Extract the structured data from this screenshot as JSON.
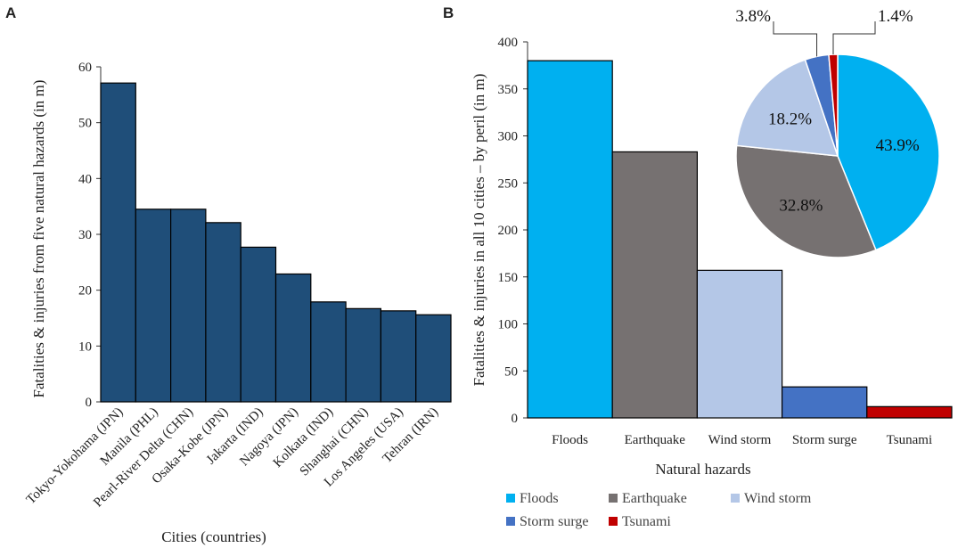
{
  "panels": {
    "a_letter": "A",
    "b_letter": "B"
  },
  "chart_data": [
    {
      "id": "panelA",
      "type": "bar",
      "title": "",
      "categories": [
        "Tokyo-Yokohama (JPN)",
        "Manila (PHL)",
        "Pearl-River Delta (CHN)",
        "Osaka-Kobe (JPN)",
        "Jakarta (IND)",
        "Nagoya (JPN)",
        "Kolkata (IND)",
        "Shanghai (CHN)",
        "Los Angeles (USA)",
        "Tehran (IRN)"
      ],
      "values": [
        57.1,
        34.5,
        34.5,
        32.1,
        27.7,
        22.9,
        17.9,
        16.7,
        16.3,
        15.6
      ],
      "xlabel": "Cities (countries)",
      "ylabel": "Fatalities & injuries from five natural hazards  (in m)",
      "ylim": [
        0,
        60
      ],
      "yticks": [
        0,
        10,
        20,
        30,
        40,
        50,
        60
      ],
      "bar_color": "#1f4e79",
      "grid": false
    },
    {
      "id": "panelB",
      "type": "bar",
      "title": "",
      "categories": [
        "Floods",
        "Earthquake",
        "Wind storm",
        "Storm surge",
        "Tsunami"
      ],
      "values": [
        380,
        283,
        157,
        33,
        12
      ],
      "colors": [
        "#00b0f0",
        "#767171",
        "#b4c7e7",
        "#4472c4",
        "#c00000"
      ],
      "xlabel": "Natural  hazards",
      "ylabel": "Fatalities & injuries in all 10 cities – by peril (in m)",
      "ylim": [
        0,
        400
      ],
      "yticks": [
        0,
        50,
        100,
        150,
        200,
        250,
        300,
        350,
        400
      ],
      "grid": false
    },
    {
      "id": "panelB-pie",
      "type": "pie",
      "labels": [
        "Floods",
        "Earthquake",
        "Wind storm",
        "Storm surge",
        "Tsunami"
      ],
      "values": [
        43.9,
        32.8,
        18.2,
        3.8,
        1.4
      ],
      "value_labels": [
        "43.9%",
        "32.8%",
        "18.2%",
        "3.8%",
        "1.4%"
      ],
      "colors": [
        "#00b0f0",
        "#767171",
        "#b4c7e7",
        "#4472c4",
        "#c00000"
      ]
    }
  ],
  "legend": {
    "placement": "bottom",
    "items": [
      {
        "label": "Floods",
        "color": "#00b0f0"
      },
      {
        "label": "Earthquake",
        "color": "#767171"
      },
      {
        "label": "Wind storm",
        "color": "#b4c7e7"
      },
      {
        "label": "Storm surge",
        "color": "#4472c4"
      },
      {
        "label": "Tsunami",
        "color": "#c00000"
      }
    ]
  }
}
